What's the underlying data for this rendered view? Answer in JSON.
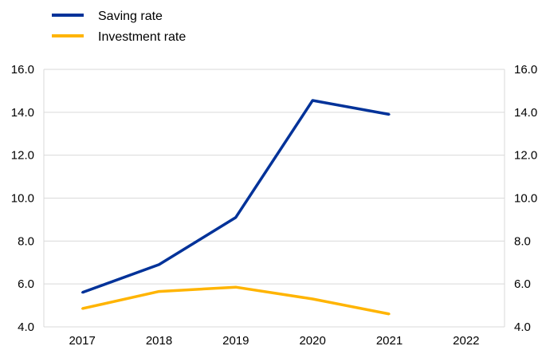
{
  "chart_data": {
    "type": "line",
    "title": "",
    "xlabel": "",
    "ylabel": "",
    "categories": [
      "2017",
      "2018",
      "2019",
      "2020",
      "2021",
      "2022"
    ],
    "series": [
      {
        "name": "Saving rate",
        "color": "#003299",
        "values": [
          5.6,
          6.9,
          9.1,
          14.55,
          13.9,
          null
        ]
      },
      {
        "name": "Investment rate",
        "color": "#FFB400",
        "values": [
          4.85,
          5.65,
          5.85,
          5.3,
          4.6,
          null
        ]
      }
    ],
    "ylim": [
      4.0,
      16.0
    ],
    "yticks": [
      "4.0",
      "6.0",
      "8.0",
      "10.0",
      "12.0",
      "14.0",
      "16.0"
    ],
    "y2ticks": [
      "4.0",
      "6.0",
      "8.0",
      "10.0",
      "12.0",
      "14.0",
      "16.0"
    ],
    "grid": true,
    "legend_position": "top-left",
    "gridline_color": "#d9d9d9"
  }
}
